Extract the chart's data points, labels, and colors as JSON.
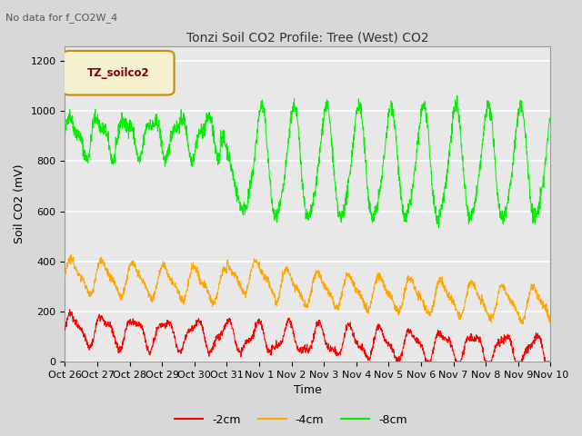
{
  "title": "Tonzi Soil CO2 Profile: Tree (West) CO2",
  "subtitle": "No data for f_CO2W_4",
  "ylabel": "Soil CO2 (mV)",
  "xlabel": "Time",
  "legend_label": "TZ_soilco2",
  "series_labels": [
    "-2cm",
    "-4cm",
    "-8cm"
  ],
  "series_colors": [
    "#ff0000",
    "#ffa500",
    "#00ee00"
  ],
  "ylim": [
    0,
    1260
  ],
  "yticks": [
    0,
    200,
    400,
    600,
    800,
    1000,
    1200
  ],
  "xtick_labels": [
    "Oct 26",
    "Oct 27",
    "Oct 28",
    "Oct 29",
    "Oct 30",
    "Oct 31",
    "Nov 1",
    "Nov 2",
    "Nov 3",
    "Nov 4",
    "Nov 5",
    "Nov 6",
    "Nov 7",
    "Nov 8",
    "Nov 9",
    "Nov 10"
  ],
  "fig_bg_color": "#d8d8d8",
  "plot_bg_color": "#e8e8e8",
  "legend_box_color": "#f5f0d0",
  "legend_box_edge_color": "#cc8800",
  "legend_text_color": "#880000",
  "grid_color": "#ffffff",
  "n_points": 2000,
  "title_fontsize": 10,
  "subtitle_fontsize": 8,
  "tick_fontsize": 8,
  "ylabel_fontsize": 9
}
